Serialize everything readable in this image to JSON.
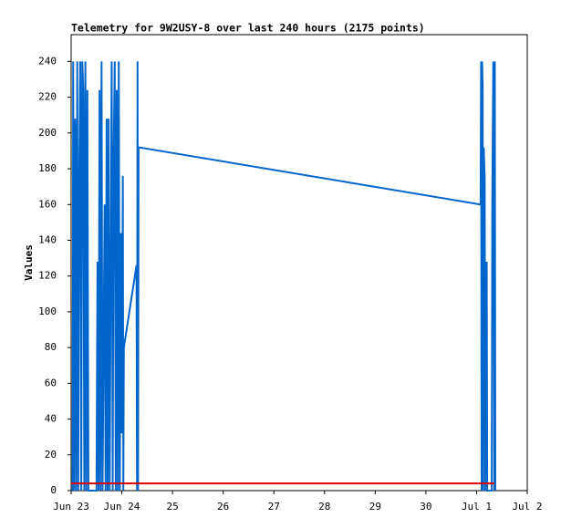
{
  "chart_data": {
    "type": "line",
    "title": "Telemetry for 9W2USY-8 over last 240 hours (2175 points)",
    "y_label": "Values",
    "xlim": [
      0,
      9
    ],
    "xticks": [
      {
        "value": 0,
        "label": "Jun 23"
      },
      {
        "value": 1,
        "label": "Jun 24"
      },
      {
        "value": 2,
        "label": "25"
      },
      {
        "value": 3,
        "label": "26"
      },
      {
        "value": 4,
        "label": "27"
      },
      {
        "value": 5,
        "label": "28"
      },
      {
        "value": 6,
        "label": "29"
      },
      {
        "value": 7,
        "label": "30"
      },
      {
        "value": 8,
        "label": "Jul 1"
      },
      {
        "value": 9,
        "label": "Jul 2"
      }
    ],
    "ylim": [
      0,
      255
    ],
    "yticks": [
      0,
      20,
      40,
      60,
      80,
      100,
      120,
      140,
      160,
      180,
      200,
      220,
      240
    ],
    "series": [
      {
        "color": "#0066cc",
        "x": [
          0.03,
          0.04,
          0.06,
          0.08,
          0.1,
          0.12,
          0.14,
          0.16,
          0.18,
          0.2,
          0.22,
          0.24,
          0.26,
          0.28,
          0.3,
          0.32,
          0.34,
          0.5,
          0.52,
          0.54,
          0.56,
          0.58,
          0.6,
          0.62,
          0.66,
          0.68,
          0.7,
          0.72,
          0.74,
          0.76,
          0.8,
          0.82,
          0.84,
          0.86,
          0.88,
          0.9,
          0.92,
          0.94,
          0.96,
          0.98,
          1.0,
          1.02,
          1.03,
          1.04,
          1.29,
          1.3,
          1.31,
          1.32,
          1.33,
          8.08,
          8.09,
          8.1,
          8.11,
          8.12,
          8.13,
          8.14,
          8.16,
          8.17,
          8.2,
          8.21,
          8.3,
          8.31,
          8.33,
          8.35,
          8.36,
          8.37
        ],
        "values": [
          0,
          240,
          0,
          208,
          0,
          240,
          0,
          176,
          240,
          0,
          240,
          224,
          0,
          240,
          0,
          224,
          0,
          0,
          128,
          0,
          224,
          0,
          240,
          0,
          160,
          0,
          208,
          0,
          208,
          0,
          240,
          0,
          192,
          240,
          0,
          224,
          0,
          240,
          0,
          144,
          32,
          176,
          0,
          80,
          126,
          0,
          240,
          0,
          192,
          160,
          240,
          0,
          240,
          224,
          0,
          192,
          176,
          0,
          128,
          0,
          0,
          160,
          240,
          0,
          240,
          0
        ]
      },
      {
        "color": "#dd0000",
        "x": [
          0,
          8.35
        ],
        "values": [
          4,
          4
        ]
      }
    ]
  }
}
